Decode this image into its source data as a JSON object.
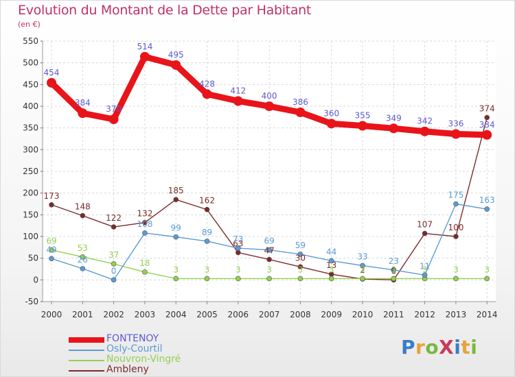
{
  "title": "Evolution du Montant de la Dette par Habitant",
  "subtitle": "(en €)",
  "logo": {
    "text": "ProXiti",
    "letter_colors": [
      "#3a7dc6",
      "#e8a23a",
      "#7ab841",
      "#c93a5a",
      "#3a7dc6",
      "#e8a23a",
      "#7ab841"
    ]
  },
  "chart_data": {
    "type": "line",
    "x": [
      "2000",
      "2001",
      "2002",
      "2003",
      "2004",
      "2005",
      "2006",
      "2007",
      "2008",
      "2009",
      "2010",
      "2011",
      "2012",
      "2013",
      "2014"
    ],
    "ylim": [
      -50,
      550
    ],
    "yticks": [
      "-50",
      "0",
      "50",
      "100",
      "150",
      "200",
      "250",
      "300",
      "350",
      "400",
      "450",
      "500",
      "550"
    ],
    "grid": true,
    "legend_placement": "bottom-left",
    "series": [
      {
        "name": "FONTENOY",
        "color": "#e8141a",
        "label_color": "#5a5ad2",
        "values": [
          454,
          384,
          370,
          514,
          495,
          428,
          412,
          400,
          386,
          360,
          355,
          349,
          342,
          336,
          334
        ],
        "labels": [
          "454",
          "384",
          "370",
          "514",
          "495",
          "428",
          "412",
          "400",
          "386",
          "360",
          "355",
          "349",
          "342",
          "336",
          "334"
        ]
      },
      {
        "name": "Osly-Courtil",
        "color": "#5b9bd5",
        "label_color": "#5b9bd5",
        "values": [
          49,
          26,
          0,
          108,
          99,
          89,
          73,
          69,
          59,
          44,
          33,
          23,
          11,
          175,
          163
        ],
        "labels": [
          "49",
          "26",
          "0",
          "108",
          "99",
          "89",
          "73",
          "69",
          "59",
          "44",
          "33",
          "23",
          "11",
          "175",
          "163"
        ]
      },
      {
        "name": "Nouvron-Vingré",
        "color": "#92d050",
        "label_color": "#92d050",
        "values": [
          69,
          53,
          37,
          18,
          3,
          3,
          3,
          3,
          3,
          3,
          3,
          3,
          3,
          3,
          3
        ],
        "labels": [
          "69",
          "53",
          "37",
          "18",
          "3",
          "3",
          "3",
          "3",
          "3",
          "3",
          "3",
          "3",
          "3",
          "3",
          "3"
        ]
      },
      {
        "name": "Ambleny",
        "color": "#7b2a2a",
        "label_color": "#7b2a2a",
        "values": [
          173,
          148,
          122,
          132,
          185,
          162,
          63,
          47,
          30,
          13,
          2,
          0,
          107,
          100,
          374
        ],
        "labels": [
          "173",
          "148",
          "122",
          "132",
          "185",
          "162",
          "63",
          "47",
          "30",
          "13",
          "2",
          "0",
          "107",
          "100",
          "374"
        ]
      }
    ]
  }
}
